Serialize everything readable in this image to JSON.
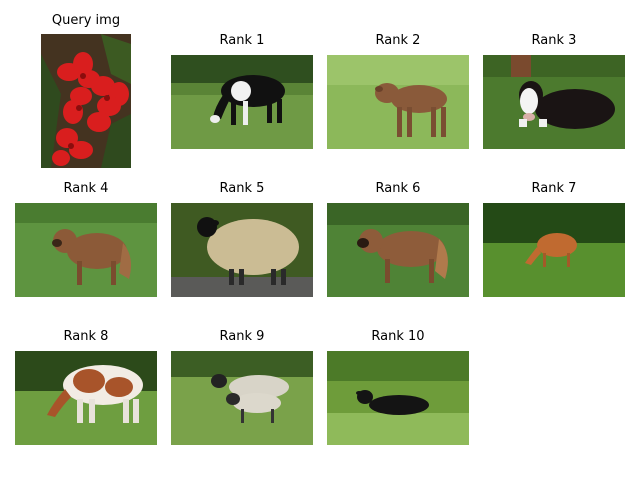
{
  "query": {
    "title": "Query img",
    "subject": "red-flower"
  },
  "results": [
    {
      "title": "Rank 1",
      "subject": "black-white-calf-grazing"
    },
    {
      "title": "Rank 2",
      "subject": "brown-calf"
    },
    {
      "title": "Rank 3",
      "subject": "black-white-cow-lying"
    },
    {
      "title": "Rank 4",
      "subject": "brown-dog"
    },
    {
      "title": "Rank 5",
      "subject": "sheep"
    },
    {
      "title": "Rank 6",
      "subject": "brown-dog"
    },
    {
      "title": "Rank 7",
      "subject": "brown-cow-grazing"
    },
    {
      "title": "Rank 8",
      "subject": "brown-white-cow-grazing"
    },
    {
      "title": "Rank 9",
      "subject": "sheep-pair"
    },
    {
      "title": "Rank 10",
      "subject": "black-cow-lying"
    }
  ],
  "colors": {
    "background": "#ffffff",
    "text": "#000000",
    "grass": "#5f8f3a",
    "flower": "#d91e1e"
  }
}
